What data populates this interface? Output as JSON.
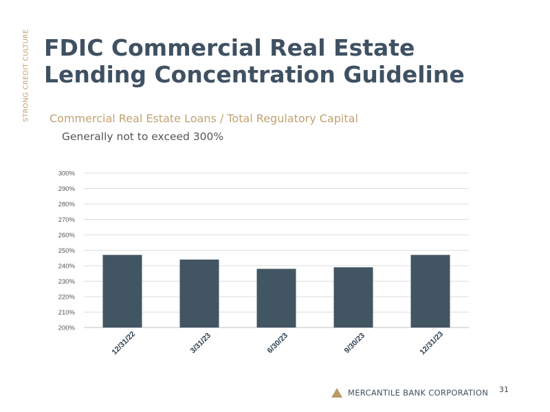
{
  "side_label": "STRONG CREDIT CULTURE",
  "title_lines": [
    "FDIC Commercial Real Estate",
    "Lending Concentration Guideline"
  ],
  "subtitle": "Commercial Real Estate Loans / Total Regulatory Capital",
  "guideline_text": "Generally not to exceed 300%",
  "chart_data": {
    "type": "bar",
    "categories": [
      "12/31/22",
      "3/31/23",
      "6/30/23",
      "9/30/23",
      "12/31/23"
    ],
    "values": [
      247,
      244,
      238,
      239,
      247
    ],
    "ylim": [
      200,
      300
    ],
    "yticks": [
      "200%",
      "210%",
      "220%",
      "230%",
      "240%",
      "250%",
      "260%",
      "270%",
      "280%",
      "290%",
      "300%"
    ],
    "title": "",
    "xlabel": "",
    "ylabel": "",
    "grid": true,
    "bar_color": "#425563"
  },
  "footer": {
    "company": "MERCANTILE BANK CORPORATION",
    "page_number": "31"
  },
  "colors": {
    "accent_gold": "#c1a171",
    "title_slate": "#3f5162"
  }
}
